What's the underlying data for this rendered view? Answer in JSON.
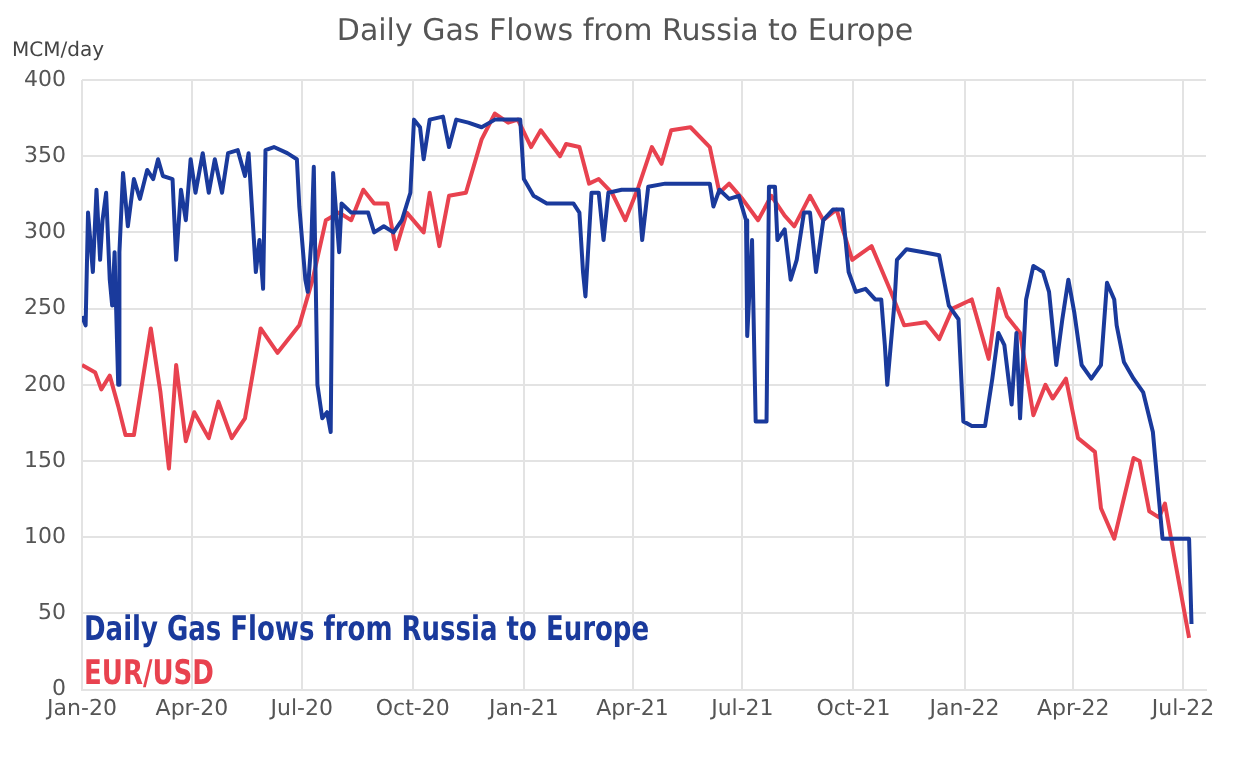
{
  "chart_data": {
    "type": "line",
    "title": "Daily Gas Flows from Russia to Europe",
    "ylabel": "MCM/day",
    "xlim": [
      "2020-01-01",
      "2022-07-20"
    ],
    "xticks": [
      {
        "value": "2020-01-01",
        "label": "Jan-20"
      },
      {
        "value": "2020-04-01",
        "label": "Apr-20"
      },
      {
        "value": "2020-07-01",
        "label": "Jul-20"
      },
      {
        "value": "2020-10-01",
        "label": "Oct-20"
      },
      {
        "value": "2021-01-01",
        "label": "Jan-21"
      },
      {
        "value": "2021-04-01",
        "label": "Apr-21"
      },
      {
        "value": "2021-07-01",
        "label": "Jul-21"
      },
      {
        "value": "2021-10-01",
        "label": "Oct-21"
      },
      {
        "value": "2022-01-01",
        "label": "Jan-22"
      },
      {
        "value": "2022-04-01",
        "label": "Apr-22"
      },
      {
        "value": "2022-07-01",
        "label": "Jul-22"
      }
    ],
    "ylim": [
      0,
      400
    ],
    "yticks": [
      0,
      50,
      100,
      150,
      200,
      250,
      300,
      350,
      400
    ],
    "grid": true,
    "legend": "bottom left",
    "marker": "none",
    "line_style": "solid",
    "series": [
      {
        "name": "Daily Gas Flows from Russia to Europe",
        "color": "#1a3a9c",
        "x": [
          "2020-01-01",
          "2020-01-04",
          "2020-01-06",
          "2020-01-10",
          "2020-01-13",
          "2020-01-16",
          "2020-01-18",
          "2020-01-21",
          "2020-01-24",
          "2020-01-26",
          "2020-01-28",
          "2020-01-31",
          "2020-02-01",
          "2020-02-04",
          "2020-02-08",
          "2020-02-13",
          "2020-02-18",
          "2020-02-24",
          "2020-02-29",
          "2020-03-04",
          "2020-03-08",
          "2020-03-16",
          "2020-03-19",
          "2020-03-23",
          "2020-03-27",
          "2020-03-31",
          "2020-04-04",
          "2020-04-10",
          "2020-04-15",
          "2020-04-20",
          "2020-04-26",
          "2020-05-01",
          "2020-05-09",
          "2020-05-15",
          "2020-05-18",
          "2020-05-22",
          "2020-05-24",
          "2020-05-27",
          "2020-05-30",
          "2020-06-01",
          "2020-06-08",
          "2020-06-19",
          "2020-06-27",
          "2020-06-29",
          "2020-07-04",
          "2020-07-06",
          "2020-07-09",
          "2020-07-11",
          "2020-07-14",
          "2020-07-18",
          "2020-07-22",
          "2020-07-25",
          "2020-07-27",
          "2020-08-01",
          "2020-08-03",
          "2020-08-11",
          "2020-08-25",
          "2020-08-30",
          "2020-09-07",
          "2020-09-15",
          "2020-09-22",
          "2020-09-29",
          "2020-10-02",
          "2020-10-07",
          "2020-10-10",
          "2020-10-15",
          "2020-10-26",
          "2020-10-31",
          "2020-11-06",
          "2020-11-16",
          "2020-11-27",
          "2020-12-08",
          "2020-12-29",
          "2021-01-01",
          "2021-01-09",
          "2021-01-20",
          "2021-02-11",
          "2021-02-16",
          "2021-02-19",
          "2021-02-21",
          "2021-02-26",
          "2021-03-04",
          "2021-03-08",
          "2021-03-12",
          "2021-03-23",
          "2021-04-01",
          "2021-04-06",
          "2021-04-09",
          "2021-04-14",
          "2021-04-28",
          "2021-06-04",
          "2021-06-07",
          "2021-06-12",
          "2021-06-20",
          "2021-06-28",
          "2021-07-04",
          "2021-07-05",
          "2021-07-09",
          "2021-07-12",
          "2021-07-21",
          "2021-07-23",
          "2021-07-28",
          "2021-07-30",
          "2021-08-05",
          "2021-08-10",
          "2021-08-15",
          "2021-08-21",
          "2021-08-26",
          "2021-08-31",
          "2021-09-06",
          "2021-09-14",
          "2021-09-22",
          "2021-09-27",
          "2021-10-03",
          "2021-10-11",
          "2021-10-19",
          "2021-10-24",
          "2021-10-27",
          "2021-10-29",
          "2021-11-04",
          "2021-11-06",
          "2021-11-14",
          "2021-11-28",
          "2021-12-11",
          "2021-12-19",
          "2021-12-27",
          "2021-12-31",
          "2022-01-07",
          "2022-01-18",
          "2022-01-24",
          "2022-01-29",
          "2022-02-03",
          "2022-02-09",
          "2022-02-13",
          "2022-02-16",
          "2022-02-21",
          "2022-02-27",
          "2022-03-07",
          "2022-03-12",
          "2022-03-18",
          "2022-03-23",
          "2022-03-28",
          "2022-04-02",
          "2022-04-08",
          "2022-04-16",
          "2022-04-24",
          "2022-04-29",
          "2022-05-05",
          "2022-05-07",
          "2022-05-13",
          "2022-05-21",
          "2022-05-29",
          "2022-06-06",
          "2022-06-11",
          "2022-06-14",
          "2022-07-06",
          "2022-07-08"
        ],
        "values": [
          245,
          239,
          313,
          274,
          328,
          282,
          308,
          326,
          269,
          252,
          287,
          200,
          287,
          339,
          304,
          335,
          322,
          341,
          335,
          348,
          337,
          335,
          282,
          328,
          308,
          348,
          326,
          352,
          326,
          348,
          326,
          352,
          354,
          337,
          352,
          300,
          274,
          295,
          263,
          354,
          356,
          352,
          348,
          317,
          269,
          261,
          295,
          343,
          200,
          178,
          182,
          169,
          339,
          287,
          319,
          313,
          313,
          300,
          304,
          300,
          308,
          326,
          374,
          369,
          348,
          374,
          376,
          356,
          374,
          372,
          369,
          374,
          374,
          335,
          324,
          319,
          319,
          313,
          274,
          258,
          326,
          326,
          295,
          326,
          328,
          328,
          328,
          295,
          330,
          332,
          332,
          317,
          328,
          322,
          324,
          308,
          232,
          295,
          176,
          176,
          330,
          330,
          295,
          302,
          269,
          282,
          313,
          313,
          274,
          308,
          315,
          315,
          274,
          261,
          263,
          256,
          256,
          226,
          200,
          254,
          282,
          289,
          287,
          285,
          252,
          243,
          176,
          173,
          173,
          204,
          234,
          226,
          187,
          234,
          178,
          256,
          278,
          274,
          261,
          213,
          243,
          269,
          247,
          213,
          204,
          213,
          267,
          256,
          239,
          215,
          204,
          195,
          169,
          125,
          99,
          99,
          43
        ]
      },
      {
        "name": "EUR/USD",
        "color": "#e8424f",
        "x": [
          "2020-01-01",
          "2020-01-12",
          "2020-01-17",
          "2020-01-24",
          "2020-01-31",
          "2020-02-06",
          "2020-02-13",
          "2020-02-27",
          "2020-03-06",
          "2020-03-13",
          "2020-03-19",
          "2020-03-27",
          "2020-04-03",
          "2020-04-15",
          "2020-04-23",
          "2020-05-04",
          "2020-05-15",
          "2020-05-28",
          "2020-06-11",
          "2020-06-29",
          "2020-07-10",
          "2020-07-21",
          "2020-08-01",
          "2020-08-11",
          "2020-08-21",
          "2020-08-30",
          "2020-09-10",
          "2020-09-17",
          "2020-09-26",
          "2020-10-10",
          "2020-10-15",
          "2020-10-23",
          "2020-10-31",
          "2020-11-14",
          "2020-11-27",
          "2020-12-08",
          "2020-12-19",
          "2020-12-27",
          "2021-01-07",
          "2021-01-15",
          "2021-01-31",
          "2021-02-05",
          "2021-02-16",
          "2021-02-24",
          "2021-03-04",
          "2021-03-15",
          "2021-03-26",
          "2021-04-06",
          "2021-04-17",
          "2021-04-25",
          "2021-05-03",
          "2021-05-19",
          "2021-06-04",
          "2021-06-12",
          "2021-06-20",
          "2021-07-01",
          "2021-07-14",
          "2021-07-25",
          "2021-08-05",
          "2021-08-13",
          "2021-08-26",
          "2021-09-06",
          "2021-09-17",
          "2021-09-30",
          "2021-10-16",
          "2021-11-01",
          "2021-11-12",
          "2021-11-30",
          "2021-12-11",
          "2021-12-22",
          "2022-01-07",
          "2022-01-21",
          "2022-01-29",
          "2022-02-05",
          "2022-02-16",
          "2022-02-27",
          "2022-03-09",
          "2022-03-15",
          "2022-03-26",
          "2022-04-05",
          "2022-04-19",
          "2022-04-24",
          "2022-05-05",
          "2022-05-21",
          "2022-05-26",
          "2022-06-03",
          "2022-06-11",
          "2022-06-16",
          "2022-06-24",
          "2022-07-06"
        ],
        "values": [
          213,
          208,
          197,
          206,
          186,
          167,
          167,
          237,
          195,
          145,
          213,
          163,
          182,
          165,
          189,
          165,
          178,
          237,
          221,
          239,
          269,
          308,
          313,
          308,
          328,
          319,
          319,
          289,
          313,
          300,
          326,
          291,
          324,
          326,
          361,
          378,
          372,
          374,
          356,
          367,
          350,
          358,
          356,
          332,
          335,
          326,
          308,
          330,
          356,
          345,
          367,
          369,
          356,
          326,
          332,
          322,
          308,
          324,
          311,
          304,
          324,
          308,
          315,
          282,
          291,
          261,
          239,
          241,
          230,
          250,
          256,
          217,
          263,
          245,
          234,
          180,
          200,
          191,
          204,
          165,
          156,
          119,
          99,
          152,
          150,
          117,
          113,
          122,
          86,
          34
        ]
      }
    ]
  }
}
